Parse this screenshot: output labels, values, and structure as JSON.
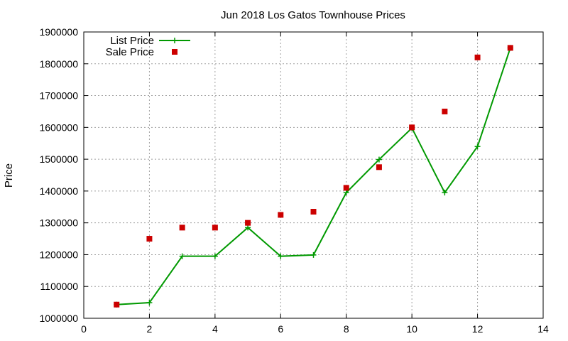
{
  "chart_data": {
    "type": "scatter",
    "title": "Jun 2018 Los Gatos Townhouse Prices",
    "xlabel": "",
    "ylabel": "Price",
    "xlim": [
      0,
      14
    ],
    "ylim": [
      1000000,
      1900000
    ],
    "xticks": [
      0,
      2,
      4,
      6,
      8,
      10,
      12,
      14
    ],
    "yticks": [
      1000000,
      1100000,
      1200000,
      1300000,
      1400000,
      1500000,
      1600000,
      1700000,
      1800000,
      1900000
    ],
    "grid": true,
    "legend_position": "top-left",
    "series": [
      {
        "name": "List Price",
        "style": "line-points",
        "marker": "plus",
        "color": "#009900",
        "x": [
          1,
          2,
          3,
          4,
          5,
          6,
          7,
          8,
          9,
          10,
          11,
          12,
          13
        ],
        "y": [
          1043000,
          1049000,
          1195000,
          1195000,
          1285000,
          1195000,
          1199000,
          1395000,
          1499000,
          1598000,
          1395000,
          1540000,
          1850000
        ]
      },
      {
        "name": "Sale Price",
        "style": "points",
        "marker": "square",
        "color": "#cc0000",
        "x": [
          1,
          2,
          3,
          4,
          5,
          6,
          7,
          8,
          9,
          10,
          11,
          12,
          13
        ],
        "y": [
          1043000,
          1250000,
          1285000,
          1285000,
          1300000,
          1325000,
          1335000,
          1410000,
          1475000,
          1600000,
          1650000,
          1820000,
          1850000
        ]
      }
    ]
  }
}
